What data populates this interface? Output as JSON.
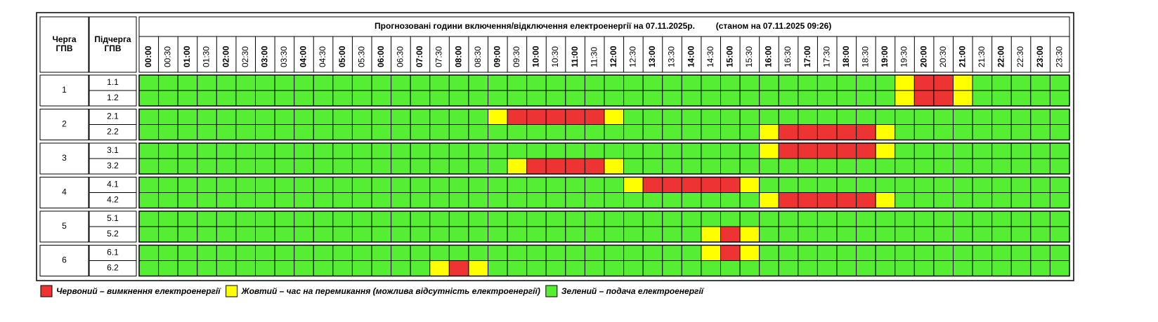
{
  "header": {
    "queue": [
      "Черга",
      "ГПВ"
    ],
    "subqueue": [
      "Підчерга",
      "ГПВ"
    ],
    "title": "Прогнозовані години включення/відключення електроенергії на 07.11.2025р.",
    "as_of": "(станом на 07.11.2025 09:26)"
  },
  "times": [
    "00:00",
    "00:30",
    "01:00",
    "01:30",
    "02:00",
    "02:30",
    "03:00",
    "03:30",
    "04:00",
    "04:30",
    "05:00",
    "05:30",
    "06:00",
    "06:30",
    "07:00",
    "07:30",
    "08:00",
    "08:30",
    "09:00",
    "09:30",
    "10:00",
    "10:30",
    "11:00",
    "11:30",
    "12:00",
    "12:30",
    "13:00",
    "13:30",
    "14:00",
    "14:30",
    "15:00",
    "15:30",
    "16:00",
    "16:30",
    "17:00",
    "17:30",
    "18:00",
    "18:30",
    "19:00",
    "19:30",
    "20:00",
    "20:30",
    "21:00",
    "21:30",
    "22:00",
    "22:30",
    "23:00",
    "23:30"
  ],
  "groups": [
    {
      "label": "1",
      "rows": [
        {
          "label": "1.1",
          "cells": [
            "#5e3",
            "#5e3",
            "#5e3",
            "#5e3",
            "#5e3",
            "#5e3",
            "#5e3",
            "#5e3",
            "#5e3",
            "#5e3",
            "#5e3",
            "#5e3",
            "#5e3",
            "#5e3",
            "#5e3",
            "#5e3",
            "#5e3",
            "#5e3",
            "#5e3",
            "#5e3",
            "#5e3",
            "#5e3",
            "#5e3",
            "#5e3",
            "#5e3",
            "#5e3",
            "#5e3",
            "#5e3",
            "#5e3",
            "#5e3",
            "#5e3",
            "#5e3",
            "#5e3",
            "#5e3",
            "#5e3",
            "#5e3",
            "#5e3",
            "#5e3",
            "#5e3",
            "#ff0",
            "#e33",
            "#e33",
            "#ff0",
            "#5e3",
            "#5e3",
            "#5e3",
            "#5e3",
            "#5e3"
          ]
        },
        {
          "label": "1.2",
          "cells": [
            "#5e3",
            "#5e3",
            "#5e3",
            "#5e3",
            "#5e3",
            "#5e3",
            "#5e3",
            "#5e3",
            "#5e3",
            "#5e3",
            "#5e3",
            "#5e3",
            "#5e3",
            "#5e3",
            "#5e3",
            "#5e3",
            "#5e3",
            "#5e3",
            "#5e3",
            "#5e3",
            "#5e3",
            "#5e3",
            "#5e3",
            "#5e3",
            "#5e3",
            "#5e3",
            "#5e3",
            "#5e3",
            "#5e3",
            "#5e3",
            "#5e3",
            "#5e3",
            "#5e3",
            "#5e3",
            "#5e3",
            "#5e3",
            "#5e3",
            "#5e3",
            "#5e3",
            "#ff0",
            "#e33",
            "#e33",
            "#ff0",
            "#5e3",
            "#5e3",
            "#5e3",
            "#5e3",
            "#5e3"
          ]
        }
      ]
    },
    {
      "label": "2",
      "rows": [
        {
          "label": "2.1",
          "cells": [
            "#5e3",
            "#5e3",
            "#5e3",
            "#5e3",
            "#5e3",
            "#5e3",
            "#5e3",
            "#5e3",
            "#5e3",
            "#5e3",
            "#5e3",
            "#5e3",
            "#5e3",
            "#5e3",
            "#5e3",
            "#5e3",
            "#5e3",
            "#5e3",
            "#ff0",
            "#e33",
            "#e33",
            "#e33",
            "#e33",
            "#e33",
            "#ff0",
            "#5e3",
            "#5e3",
            "#5e3",
            "#5e3",
            "#5e3",
            "#5e3",
            "#5e3",
            "#5e3",
            "#5e3",
            "#5e3",
            "#5e3",
            "#5e3",
            "#5e3",
            "#5e3",
            "#5e3",
            "#5e3",
            "#5e3",
            "#5e3",
            "#5e3",
            "#5e3",
            "#5e3",
            "#5e3",
            "#5e3"
          ]
        },
        {
          "label": "2.2",
          "cells": [
            "#5e3",
            "#5e3",
            "#5e3",
            "#5e3",
            "#5e3",
            "#5e3",
            "#5e3",
            "#5e3",
            "#5e3",
            "#5e3",
            "#5e3",
            "#5e3",
            "#5e3",
            "#5e3",
            "#5e3",
            "#5e3",
            "#5e3",
            "#5e3",
            "#5e3",
            "#5e3",
            "#5e3",
            "#5e3",
            "#5e3",
            "#5e3",
            "#5e3",
            "#5e3",
            "#5e3",
            "#5e3",
            "#5e3",
            "#5e3",
            "#5e3",
            "#5e3",
            "#ff0",
            "#e33",
            "#e33",
            "#e33",
            "#e33",
            "#e33",
            "#ff0",
            "#5e3",
            "#5e3",
            "#5e3",
            "#5e3",
            "#5e3",
            "#5e3",
            "#5e3",
            "#5e3",
            "#5e3"
          ]
        }
      ]
    },
    {
      "label": "3",
      "rows": [
        {
          "label": "3.1",
          "cells": [
            "#5e3",
            "#5e3",
            "#5e3",
            "#5e3",
            "#5e3",
            "#5e3",
            "#5e3",
            "#5e3",
            "#5e3",
            "#5e3",
            "#5e3",
            "#5e3",
            "#5e3",
            "#5e3",
            "#5e3",
            "#5e3",
            "#5e3",
            "#5e3",
            "#5e3",
            "#5e3",
            "#5e3",
            "#5e3",
            "#5e3",
            "#5e3",
            "#5e3",
            "#5e3",
            "#5e3",
            "#5e3",
            "#5e3",
            "#5e3",
            "#5e3",
            "#5e3",
            "#ff0",
            "#e33",
            "#e33",
            "#e33",
            "#e33",
            "#e33",
            "#ff0",
            "#5e3",
            "#5e3",
            "#5e3",
            "#5e3",
            "#5e3",
            "#5e3",
            "#5e3",
            "#5e3",
            "#5e3"
          ]
        },
        {
          "label": "3.2",
          "cells": [
            "#5e3",
            "#5e3",
            "#5e3",
            "#5e3",
            "#5e3",
            "#5e3",
            "#5e3",
            "#5e3",
            "#5e3",
            "#5e3",
            "#5e3",
            "#5e3",
            "#5e3",
            "#5e3",
            "#5e3",
            "#5e3",
            "#5e3",
            "#5e3",
            "#5e3",
            "#ff0",
            "#e33",
            "#e33",
            "#e33",
            "#e33",
            "#ff0",
            "#5e3",
            "#5e3",
            "#5e3",
            "#5e3",
            "#5e3",
            "#5e3",
            "#5e3",
            "#5e3",
            "#5e3",
            "#5e3",
            "#5e3",
            "#5e3",
            "#5e3",
            "#5e3",
            "#5e3",
            "#5e3",
            "#5e3",
            "#5e3",
            "#5e3",
            "#5e3",
            "#5e3",
            "#5e3",
            "#5e3"
          ]
        }
      ]
    },
    {
      "label": "4",
      "rows": [
        {
          "label": "4.1",
          "cells": [
            "#5e3",
            "#5e3",
            "#5e3",
            "#5e3",
            "#5e3",
            "#5e3",
            "#5e3",
            "#5e3",
            "#5e3",
            "#5e3",
            "#5e3",
            "#5e3",
            "#5e3",
            "#5e3",
            "#5e3",
            "#5e3",
            "#5e3",
            "#5e3",
            "#5e3",
            "#5e3",
            "#5e3",
            "#5e3",
            "#5e3",
            "#5e3",
            "#5e3",
            "#ff0",
            "#e33",
            "#e33",
            "#e33",
            "#e33",
            "#e33",
            "#ff0",
            "#5e3",
            "#5e3",
            "#5e3",
            "#5e3",
            "#5e3",
            "#5e3",
            "#5e3",
            "#5e3",
            "#5e3",
            "#5e3",
            "#5e3",
            "#5e3",
            "#5e3",
            "#5e3",
            "#5e3",
            "#5e3"
          ]
        },
        {
          "label": "4.2",
          "cells": [
            "#5e3",
            "#5e3",
            "#5e3",
            "#5e3",
            "#5e3",
            "#5e3",
            "#5e3",
            "#5e3",
            "#5e3",
            "#5e3",
            "#5e3",
            "#5e3",
            "#5e3",
            "#5e3",
            "#5e3",
            "#5e3",
            "#5e3",
            "#5e3",
            "#5e3",
            "#5e3",
            "#5e3",
            "#5e3",
            "#5e3",
            "#5e3",
            "#5e3",
            "#5e3",
            "#5e3",
            "#5e3",
            "#5e3",
            "#5e3",
            "#5e3",
            "#5e3",
            "#ff0",
            "#e33",
            "#e33",
            "#e33",
            "#e33",
            "#e33",
            "#ff0",
            "#5e3",
            "#5e3",
            "#5e3",
            "#5e3",
            "#5e3",
            "#5e3",
            "#5e3",
            "#5e3",
            "#5e3"
          ]
        }
      ]
    },
    {
      "label": "5",
      "rows": [
        {
          "label": "5.1",
          "cells": [
            "#5e3",
            "#5e3",
            "#5e3",
            "#5e3",
            "#5e3",
            "#5e3",
            "#5e3",
            "#5e3",
            "#5e3",
            "#5e3",
            "#5e3",
            "#5e3",
            "#5e3",
            "#5e3",
            "#5e3",
            "#5e3",
            "#5e3",
            "#5e3",
            "#5e3",
            "#5e3",
            "#5e3",
            "#5e3",
            "#5e3",
            "#5e3",
            "#5e3",
            "#5e3",
            "#5e3",
            "#5e3",
            "#5e3",
            "#5e3",
            "#5e3",
            "#5e3",
            "#5e3",
            "#5e3",
            "#5e3",
            "#5e3",
            "#5e3",
            "#5e3",
            "#5e3",
            "#5e3",
            "#5e3",
            "#5e3",
            "#5e3",
            "#5e3",
            "#5e3",
            "#5e3",
            "#5e3",
            "#5e3"
          ]
        },
        {
          "label": "5.2",
          "cells": [
            "#5e3",
            "#5e3",
            "#5e3",
            "#5e3",
            "#5e3",
            "#5e3",
            "#5e3",
            "#5e3",
            "#5e3",
            "#5e3",
            "#5e3",
            "#5e3",
            "#5e3",
            "#5e3",
            "#5e3",
            "#5e3",
            "#5e3",
            "#5e3",
            "#5e3",
            "#5e3",
            "#5e3",
            "#5e3",
            "#5e3",
            "#5e3",
            "#5e3",
            "#5e3",
            "#5e3",
            "#5e3",
            "#5e3",
            "#ff0",
            "#e33",
            "#ff0",
            "#5e3",
            "#5e3",
            "#5e3",
            "#5e3",
            "#5e3",
            "#5e3",
            "#5e3",
            "#5e3",
            "#5e3",
            "#5e3",
            "#5e3",
            "#5e3",
            "#5e3",
            "#5e3",
            "#5e3",
            "#5e3"
          ]
        }
      ]
    },
    {
      "label": "6",
      "rows": [
        {
          "label": "6.1",
          "cells": [
            "#5e3",
            "#5e3",
            "#5e3",
            "#5e3",
            "#5e3",
            "#5e3",
            "#5e3",
            "#5e3",
            "#5e3",
            "#5e3",
            "#5e3",
            "#5e3",
            "#5e3",
            "#5e3",
            "#5e3",
            "#5e3",
            "#5e3",
            "#5e3",
            "#5e3",
            "#5e3",
            "#5e3",
            "#5e3",
            "#5e3",
            "#5e3",
            "#5e3",
            "#5e3",
            "#5e3",
            "#5e3",
            "#5e3",
            "#ff0",
            "#e33",
            "#ff0",
            "#5e3",
            "#5e3",
            "#5e3",
            "#5e3",
            "#5e3",
            "#5e3",
            "#5e3",
            "#5e3",
            "#5e3",
            "#5e3",
            "#5e3",
            "#5e3",
            "#5e3",
            "#5e3",
            "#5e3",
            "#5e3"
          ]
        },
        {
          "label": "6.2",
          "cells": [
            "#5e3",
            "#5e3",
            "#5e3",
            "#5e3",
            "#5e3",
            "#5e3",
            "#5e3",
            "#5e3",
            "#5e3",
            "#5e3",
            "#5e3",
            "#5e3",
            "#5e3",
            "#5e3",
            "#5e3",
            "#ff0",
            "#e33",
            "#ff0",
            "#5e3",
            "#5e3",
            "#5e3",
            "#5e3",
            "#5e3",
            "#5e3",
            "#5e3",
            "#5e3",
            "#5e3",
            "#5e3",
            "#5e3",
            "#5e3",
            "#5e3",
            "#5e3",
            "#5e3",
            "#5e3",
            "#5e3",
            "#5e3",
            "#5e3",
            "#5e3",
            "#5e3",
            "#5e3",
            "#5e3",
            "#5e3",
            "#5e3",
            "#5e3",
            "#5e3",
            "#5e3",
            "#5e3",
            "#5e3"
          ]
        }
      ]
    }
  ],
  "legend": [
    {
      "color": "#e33",
      "label": "Червоний – вимкнення електроенергії"
    },
    {
      "color": "#ff0",
      "label": "Жовтий – час на перемикання (можлива відсутність електроенергії)"
    },
    {
      "color": "#5e3",
      "label": "Зелений – подача електроенергії"
    }
  ]
}
